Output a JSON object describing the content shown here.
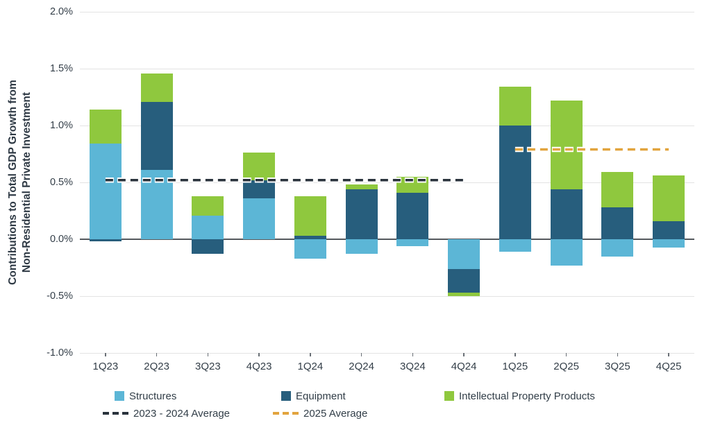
{
  "axis": {
    "y_title_line1": "Contributions to Total GDP Growth from",
    "y_title_line2": "Non-Residential Private Investment",
    "y_tick_labels": [
      "2.0%",
      "1.5%",
      "1.0%",
      "0.5%",
      "0.0%",
      "-0.5%",
      "-1.0%"
    ]
  },
  "colors": {
    "structures": "#5CB6D6",
    "equipment": "#275E7D",
    "ipp": "#8FC83E",
    "avg_2023_2024": "#2A333C",
    "avg_2025": "#E2A43E",
    "grid": "#E3E3E3",
    "zero_line": "#54585D",
    "text": "#333E48"
  },
  "legend": {
    "row1": [
      {
        "label": "Structures",
        "type": "swatch",
        "color": "#5CB6D6"
      },
      {
        "label": "Equipment",
        "type": "swatch",
        "color": "#275E7D"
      },
      {
        "label": "Intellectual Property Products",
        "type": "swatch",
        "color": "#8FC83E"
      }
    ],
    "row2": [
      {
        "label": "2023 - 2024 Average",
        "type": "dash",
        "color": "#2A333C"
      },
      {
        "label": "2025 Average",
        "type": "dash",
        "color": "#E2A43E"
      }
    ]
  },
  "chart_data": {
    "type": "bar",
    "stacked": true,
    "title": "",
    "ylabel": "Contributions to Total GDP Growth from Non-Residential Private Investment",
    "xlabel": "",
    "ylim": [
      -1.0,
      2.0
    ],
    "ytick_step": 0.5,
    "grid": true,
    "legend_position": "bottom",
    "categories": [
      "1Q23",
      "2Q23",
      "3Q23",
      "4Q23",
      "1Q24",
      "2Q24",
      "3Q24",
      "4Q24",
      "1Q25",
      "2Q25",
      "3Q25",
      "4Q25"
    ],
    "series": [
      {
        "name": "Structures",
        "color": "#5CB6D6",
        "values": [
          0.84,
          0.61,
          0.21,
          0.36,
          -0.17,
          -0.13,
          -0.06,
          -0.26,
          -0.11,
          -0.23,
          -0.15,
          -0.07
        ]
      },
      {
        "name": "Equipment",
        "color": "#275E7D",
        "values": [
          -0.02,
          0.6,
          -0.13,
          0.16,
          0.03,
          0.44,
          0.41,
          -0.21,
          1.0,
          0.44,
          0.28,
          0.16
        ]
      },
      {
        "name": "Intellectual Property Products",
        "color": "#8FC83E",
        "values": [
          0.3,
          0.25,
          0.17,
          0.24,
          0.35,
          0.04,
          0.14,
          -0.03,
          0.34,
          0.78,
          0.31,
          0.4
        ]
      }
    ],
    "reference_lines": [
      {
        "label": "2023 - 2024 Average",
        "value": 0.52,
        "color": "#2A333C",
        "span_categories": [
          "1Q23",
          "4Q24"
        ]
      },
      {
        "label": "2025 Average",
        "value": 0.79,
        "color": "#E2A43E",
        "span_categories": [
          "1Q25",
          "4Q25"
        ]
      }
    ]
  }
}
